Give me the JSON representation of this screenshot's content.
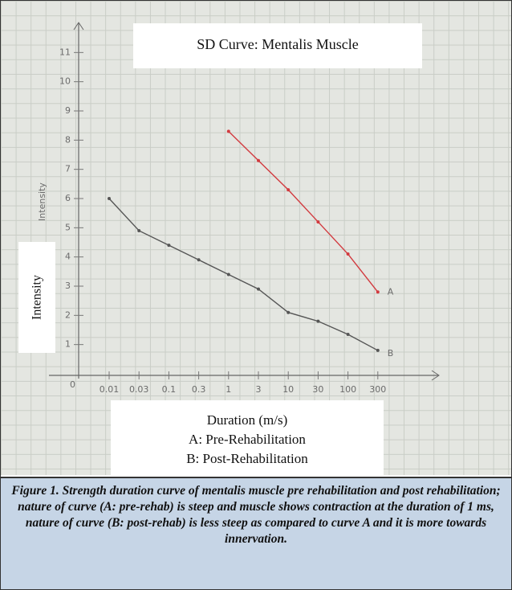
{
  "chart_data": {
    "type": "line",
    "title": "SD Curve: Mentalis Muscle",
    "y_label": "Intensity",
    "y_label_handwritten": "Intensity",
    "origin_label": "0",
    "x_label": "Duration (m/s)",
    "notes": [
      "A: Pre-Rehabilitation",
      "B: Post-Rehabilitation"
    ],
    "categories": [
      "0.01",
      "0.03",
      "0.1",
      "0.3",
      "1",
      "3",
      "10",
      "30",
      "100",
      "300"
    ],
    "series": [
      {
        "name": "A",
        "color": "#d23a3f",
        "values": [
          null,
          null,
          null,
          null,
          8.3,
          7.3,
          6.3,
          5.2,
          4.1,
          2.8
        ]
      },
      {
        "name": "B",
        "color": "#555555",
        "values": [
          6.0,
          4.9,
          4.4,
          3.9,
          3.4,
          2.9,
          2.1,
          1.8,
          1.35,
          0.8
        ]
      }
    ],
    "ylim": [
      0,
      12
    ],
    "yticks": [
      1,
      2,
      3,
      4,
      5,
      6,
      7,
      8,
      9,
      10,
      11
    ],
    "caption": "Figure 1. Strength duration curve of mentalis muscle pre rehabilitation and post rehabilitation; nature of curve (A: pre-rehab) is steep and muscle shows contraction at the duration of 1 ms, nature of curve (B: post-rehab) is less steep as compared to curve A and it is more towards innervation."
  }
}
